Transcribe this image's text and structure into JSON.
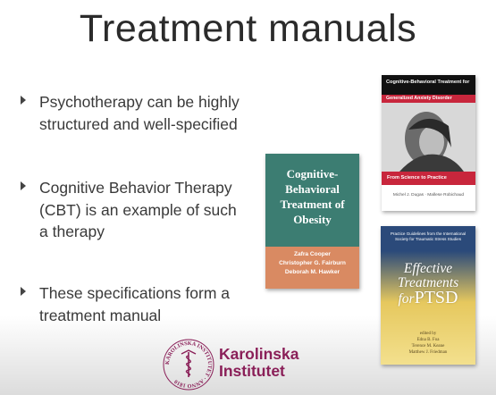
{
  "slide": {
    "title": "Treatment manuals",
    "bullets": [
      "Psychotherapy can be highly structured and well-specified",
      "Cognitive Behavior Therapy (CBT) is an example of such a therapy",
      "These specifications form a treatment manual"
    ]
  },
  "books": {
    "obesity": {
      "title": "Cognitive-Behavioral Treatment of Obesity",
      "authors": [
        "Zafra Cooper",
        "Christopher G. Fairburn",
        "Deborah M. Hawker"
      ],
      "colors": {
        "cover": "#3c7d72",
        "band": "#d98a62"
      }
    },
    "gad": {
      "header": "Cognitive-Behavioral Treatment for",
      "subtitle": "Generalized Anxiety Disorder",
      "tagline": "From Science to Practice",
      "authors": "Michel J. Dugas · Mallese Robichaud",
      "colors": {
        "header": "#111111",
        "accent": "#c8263c"
      }
    },
    "ptsd": {
      "series": "Practice Guidelines from the International Society for Traumatic Stress Studies",
      "title_line1": "Effective",
      "title_line2": "Treatments",
      "title_line3_prefix": "for",
      "title_line3": "PTSD",
      "editors_label": "edited by",
      "editors": [
        "Edna B. Foa",
        "Terence M. Keane",
        "Matthew J. Friedman"
      ],
      "colors": {
        "top": "#2b4a7a",
        "bottom": "#f3e08e"
      }
    }
  },
  "logo": {
    "name_line1": "Karolinska",
    "name_line2": "Institutet",
    "seal_text": "KAROLINSKA INSTITUTET · ANNO 1810",
    "color": "#8a1f58"
  }
}
